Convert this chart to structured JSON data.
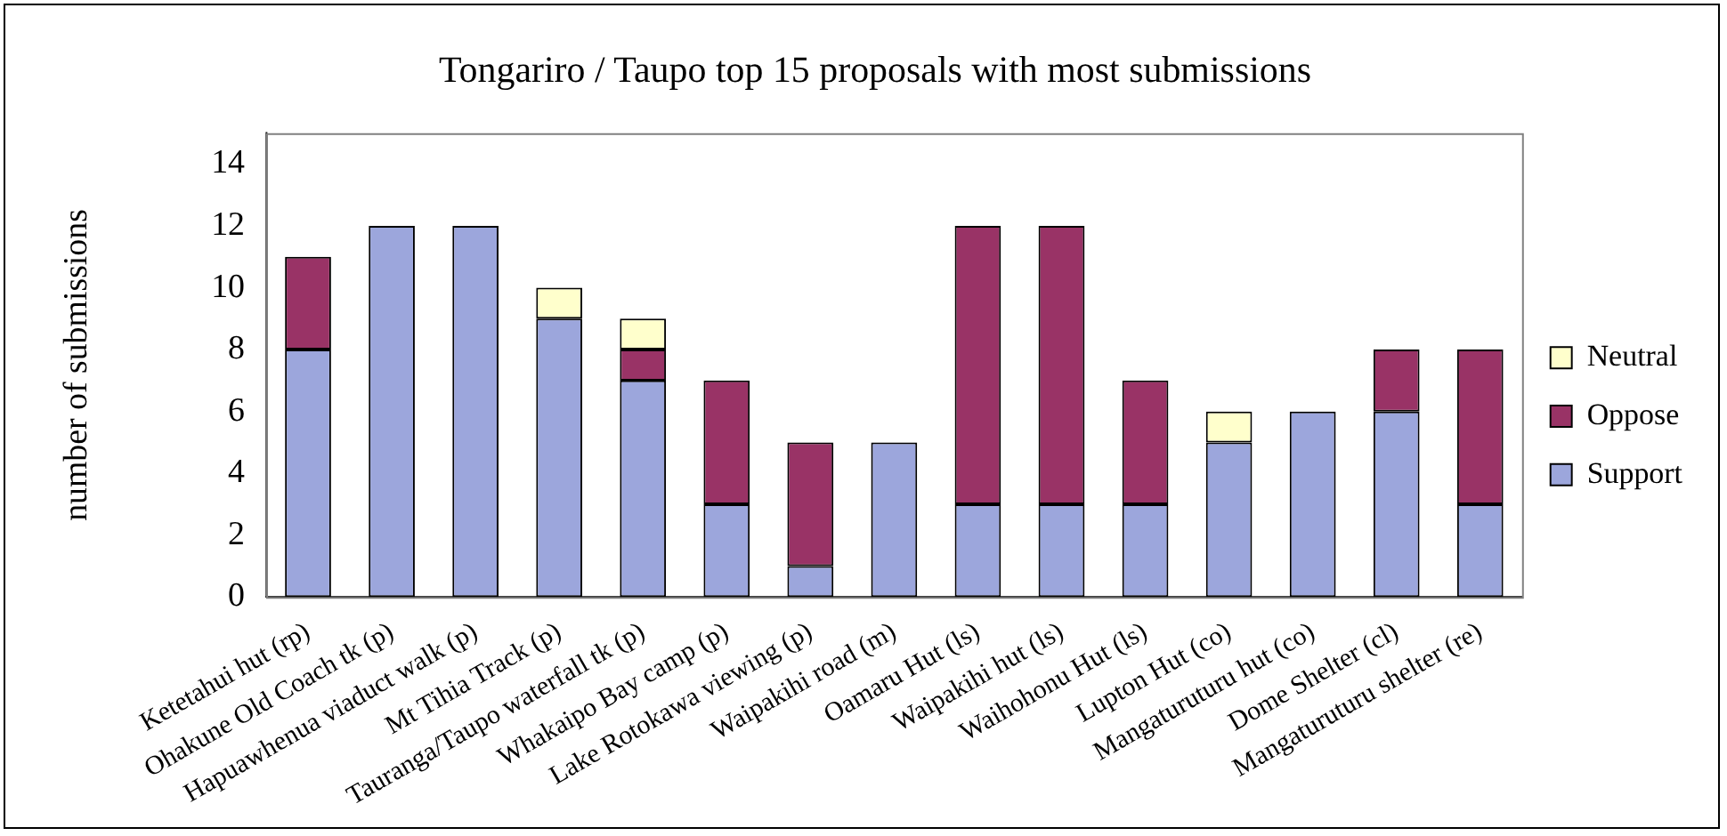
{
  "chart_data": {
    "type": "bar",
    "title": "Tongariro / Taupo top 15 proposals with most submissions",
    "ylabel": "number of submissions",
    "categories": [
      "Ketetahui hut (rp)",
      "Ohakune Old Coach tk (p)",
      "Hapuawhenua viaduct walk (p)",
      "Mt Tihia Track (p)",
      "Tauranga/Taupo waterfall tk (p)",
      "Whakaipo Bay camp (p)",
      "Lake Rotokawa viewing (p)",
      "Waipakihi road (m)",
      "Oamaru Hut (ls)",
      "Waipakihi hut (ls)",
      "Waihohonu Hut (ls)",
      "Lupton Hut (co)",
      "Mangaturuturu hut (co)",
      "Dome Shelter (cl)",
      "Mangaturuturu shelter (re)"
    ],
    "series": [
      {
        "name": "Support",
        "color": "#9ca6dc",
        "values": [
          8,
          12,
          12,
          9,
          7,
          3,
          1,
          5,
          3,
          3,
          3,
          5,
          6,
          6,
          3
        ]
      },
      {
        "name": "Oppose",
        "color": "#993366",
        "values": [
          3,
          0,
          0,
          0,
          1,
          4,
          4,
          0,
          9,
          9,
          4,
          0,
          0,
          2,
          5
        ]
      },
      {
        "name": "Neutral",
        "color": "#ffffcc",
        "values": [
          0,
          0,
          0,
          1,
          1,
          0,
          0,
          0,
          0,
          0,
          0,
          1,
          0,
          0,
          0
        ]
      }
    ],
    "stacked": true,
    "ylim": [
      0,
      15
    ],
    "yticks": [
      0,
      2,
      4,
      6,
      8,
      10,
      12,
      14
    ],
    "grid": false,
    "legend": "right"
  }
}
